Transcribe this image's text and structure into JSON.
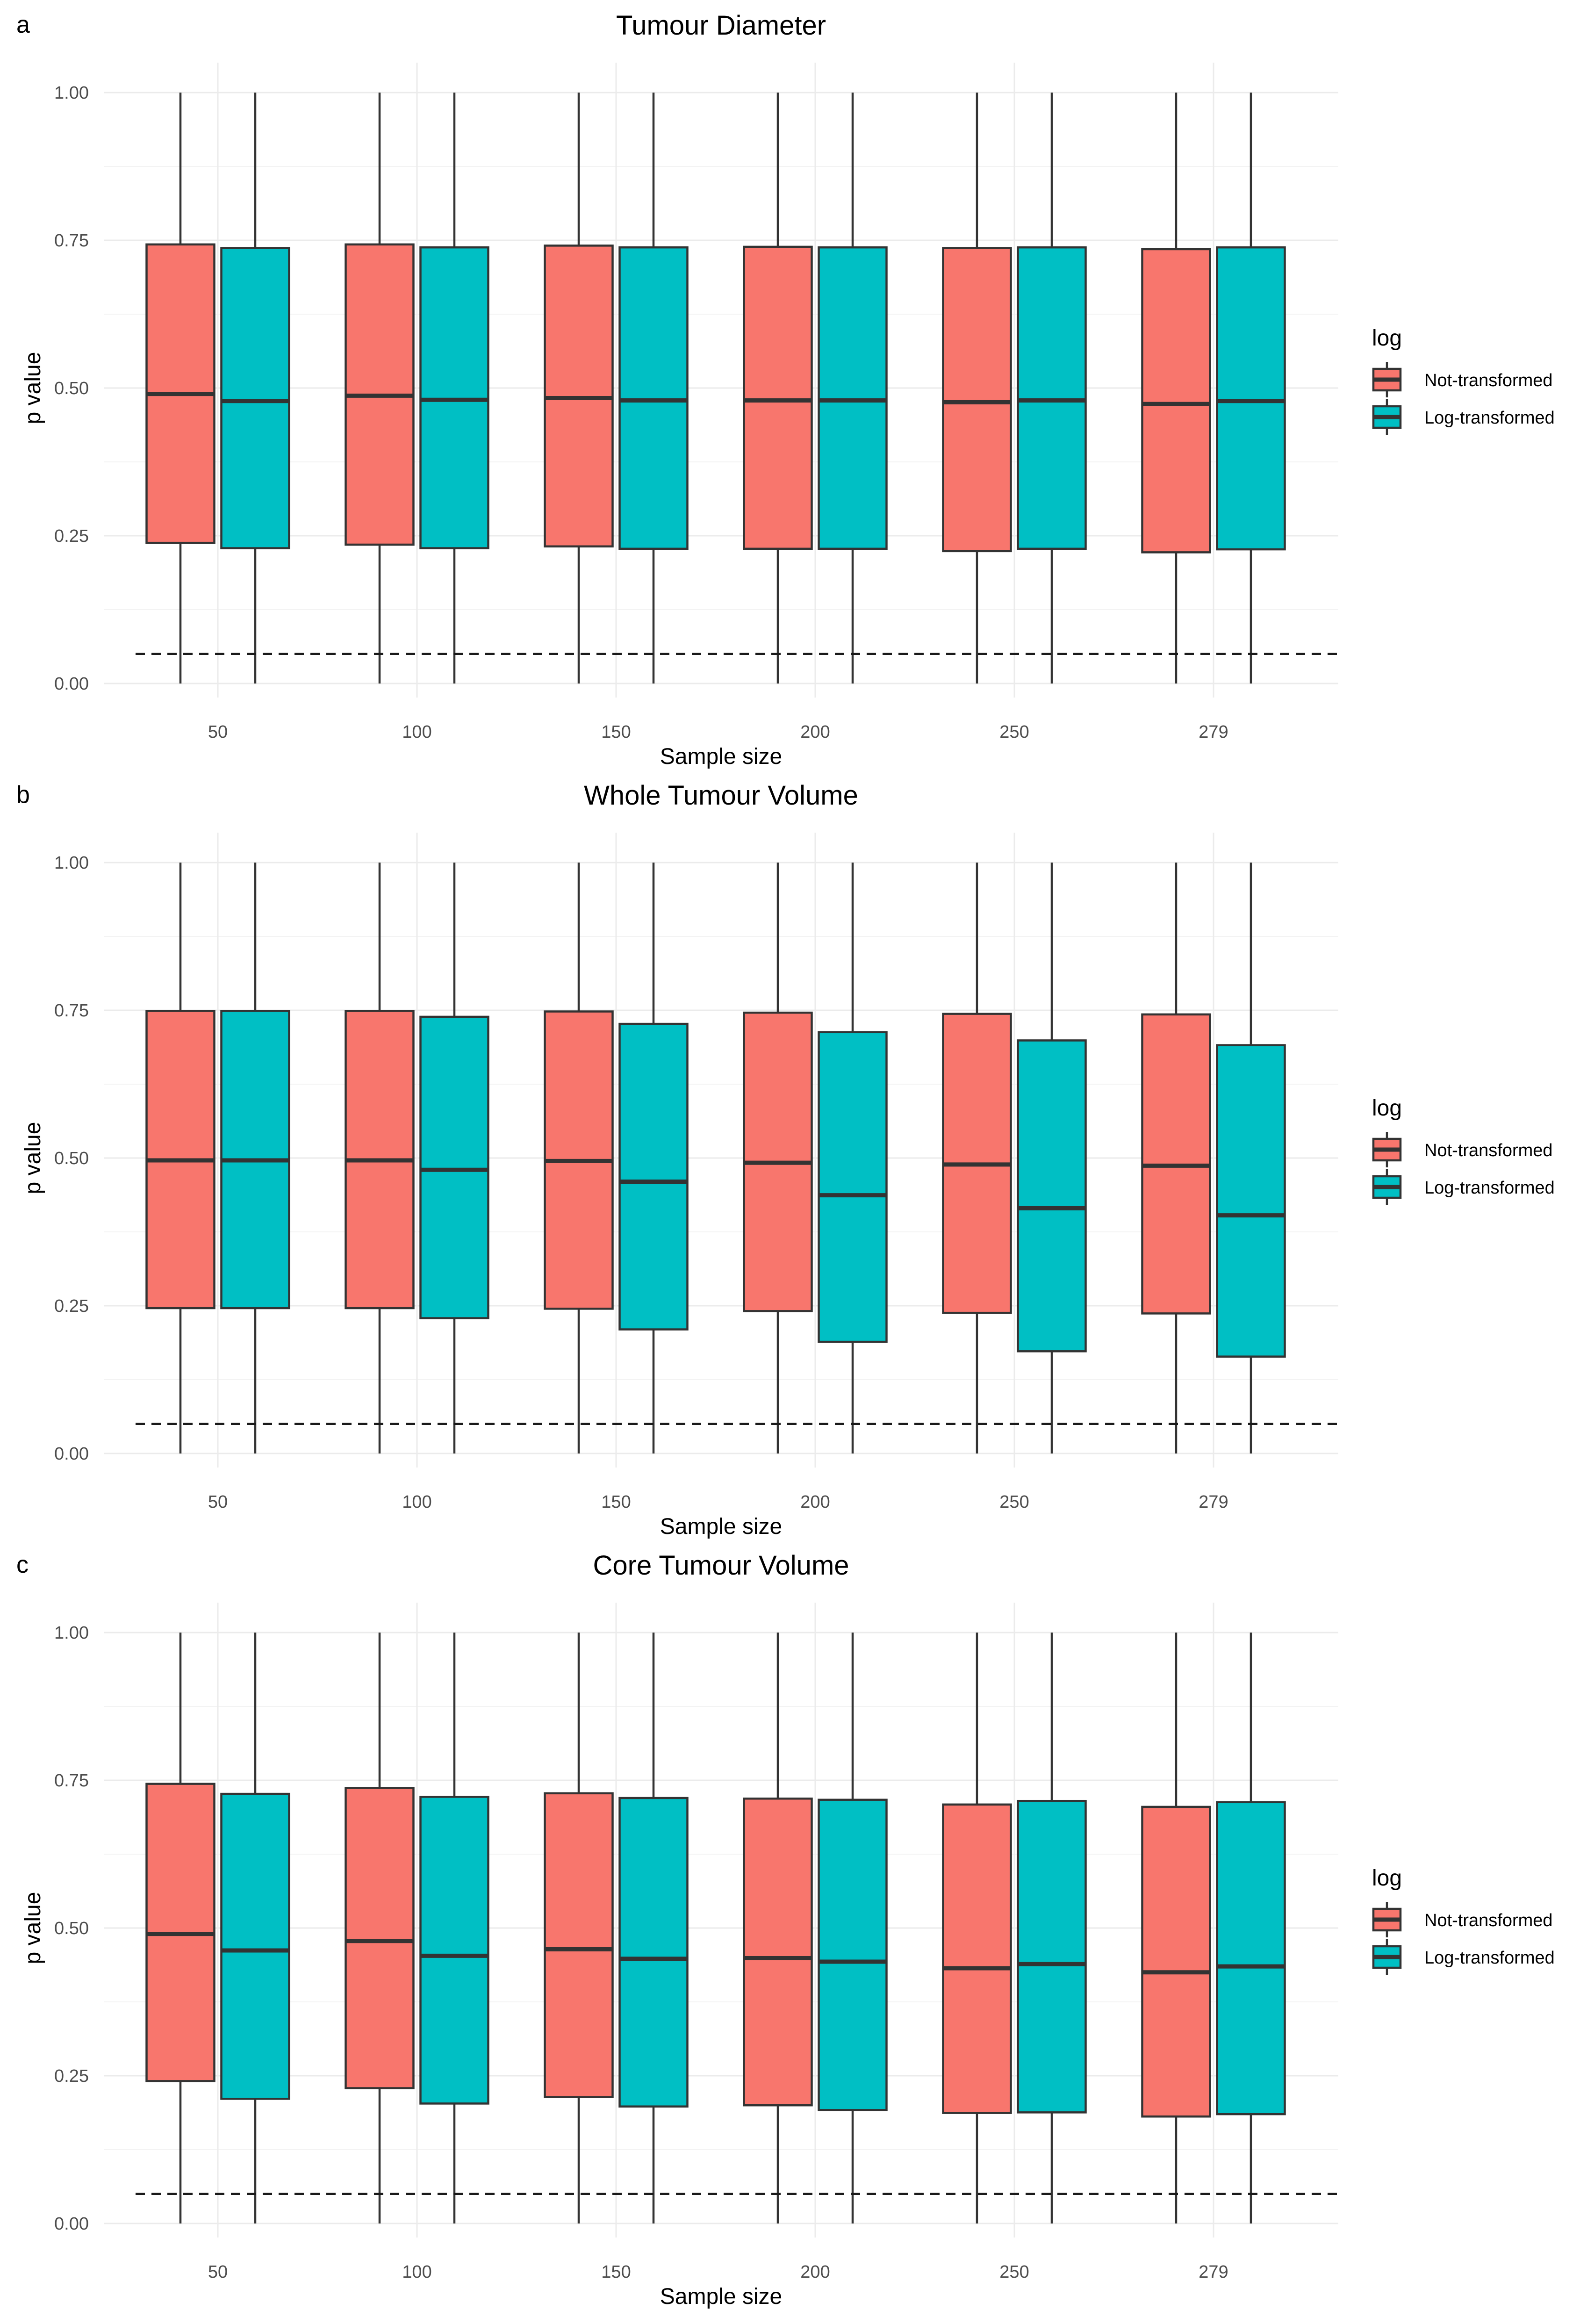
{
  "chart_data": [
    {
      "type": "box",
      "panel": "a",
      "title": "Tumour Diameter",
      "xlabel": "Sample size",
      "ylabel": "p value",
      "categories": [
        "50",
        "100",
        "150",
        "200",
        "250",
        "279"
      ],
      "ylim": [
        0,
        1
      ],
      "yticks": [
        "0.00",
        "0.25",
        "0.50",
        "0.75",
        "1.00"
      ],
      "reference_line": 0.05,
      "legend": {
        "title": "log",
        "entries": [
          "Not-transformed",
          "Log-transformed"
        ],
        "position": "right"
      },
      "series": [
        {
          "name": "Not-transformed",
          "color": "#F8766D",
          "boxes": [
            {
              "min": 0,
              "q1": 0.238,
              "median": 0.49,
              "q3": 0.743,
              "max": 1.0
            },
            {
              "min": 0,
              "q1": 0.235,
              "median": 0.487,
              "q3": 0.743,
              "max": 1.0
            },
            {
              "min": 0,
              "q1": 0.232,
              "median": 0.483,
              "q3": 0.741,
              "max": 1.0
            },
            {
              "min": 0,
              "q1": 0.228,
              "median": 0.479,
              "q3": 0.739,
              "max": 1.0
            },
            {
              "min": 0,
              "q1": 0.224,
              "median": 0.476,
              "q3": 0.737,
              "max": 1.0
            },
            {
              "min": 0,
              "q1": 0.222,
              "median": 0.473,
              "q3": 0.735,
              "max": 1.0
            }
          ]
        },
        {
          "name": "Log-transformed",
          "color": "#00BFC4",
          "boxes": [
            {
              "min": 0,
              "q1": 0.229,
              "median": 0.478,
              "q3": 0.737,
              "max": 1.0
            },
            {
              "min": 0,
              "q1": 0.229,
              "median": 0.48,
              "q3": 0.738,
              "max": 1.0
            },
            {
              "min": 0,
              "q1": 0.228,
              "median": 0.479,
              "q3": 0.738,
              "max": 1.0
            },
            {
              "min": 0,
              "q1": 0.228,
              "median": 0.479,
              "q3": 0.738,
              "max": 1.0
            },
            {
              "min": 0,
              "q1": 0.228,
              "median": 0.479,
              "q3": 0.738,
              "max": 1.0
            },
            {
              "min": 0,
              "q1": 0.227,
              "median": 0.478,
              "q3": 0.738,
              "max": 1.0
            }
          ]
        }
      ]
    },
    {
      "type": "box",
      "panel": "b",
      "title": "Whole Tumour Volume",
      "xlabel": "Sample size",
      "ylabel": "p value",
      "categories": [
        "50",
        "100",
        "150",
        "200",
        "250",
        "279"
      ],
      "ylim": [
        0,
        1
      ],
      "yticks": [
        "0.00",
        "0.25",
        "0.50",
        "0.75",
        "1.00"
      ],
      "reference_line": 0.05,
      "legend": {
        "title": "log",
        "entries": [
          "Not-transformed",
          "Log-transformed"
        ],
        "position": "right"
      },
      "series": [
        {
          "name": "Not-transformed",
          "color": "#F8766D",
          "boxes": [
            {
              "min": 0,
              "q1": 0.246,
              "median": 0.496,
              "q3": 0.749,
              "max": 1.0
            },
            {
              "min": 0,
              "q1": 0.246,
              "median": 0.496,
              "q3": 0.749,
              "max": 1.0
            },
            {
              "min": 0,
              "q1": 0.245,
              "median": 0.495,
              "q3": 0.748,
              "max": 1.0
            },
            {
              "min": 0,
              "q1": 0.241,
              "median": 0.492,
              "q3": 0.746,
              "max": 1.0
            },
            {
              "min": 0,
              "q1": 0.238,
              "median": 0.489,
              "q3": 0.744,
              "max": 1.0
            },
            {
              "min": 0,
              "q1": 0.237,
              "median": 0.487,
              "q3": 0.743,
              "max": 1.0
            }
          ]
        },
        {
          "name": "Log-transformed",
          "color": "#00BFC4",
          "boxes": [
            {
              "min": 0,
              "q1": 0.246,
              "median": 0.496,
              "q3": 0.749,
              "max": 1.0
            },
            {
              "min": 0,
              "q1": 0.229,
              "median": 0.48,
              "q3": 0.739,
              "max": 1.0
            },
            {
              "min": 0,
              "q1": 0.21,
              "median": 0.46,
              "q3": 0.727,
              "max": 1.0
            },
            {
              "min": 0,
              "q1": 0.189,
              "median": 0.437,
              "q3": 0.713,
              "max": 1.0
            },
            {
              "min": 0,
              "q1": 0.173,
              "median": 0.415,
              "q3": 0.699,
              "max": 1.0
            },
            {
              "min": 0,
              "q1": 0.164,
              "median": 0.403,
              "q3": 0.691,
              "max": 1.0
            }
          ]
        }
      ]
    },
    {
      "type": "box",
      "panel": "c",
      "title": "Core Tumour Volume",
      "xlabel": "Sample size",
      "ylabel": "p value",
      "categories": [
        "50",
        "100",
        "150",
        "200",
        "250",
        "279"
      ],
      "ylim": [
        0,
        1
      ],
      "yticks": [
        "0.00",
        "0.25",
        "0.50",
        "0.75",
        "1.00"
      ],
      "reference_line": 0.05,
      "legend": {
        "title": "log",
        "entries": [
          "Not-transformed",
          "Log-transformed"
        ],
        "position": "right"
      },
      "series": [
        {
          "name": "Not-transformed",
          "color": "#F8766D",
          "boxes": [
            {
              "min": 0,
              "q1": 0.241,
              "median": 0.49,
              "q3": 0.744,
              "max": 1.0
            },
            {
              "min": 0,
              "q1": 0.229,
              "median": 0.478,
              "q3": 0.737,
              "max": 1.0
            },
            {
              "min": 0,
              "q1": 0.214,
              "median": 0.464,
              "q3": 0.728,
              "max": 1.0
            },
            {
              "min": 0,
              "q1": 0.2,
              "median": 0.449,
              "q3": 0.719,
              "max": 1.0
            },
            {
              "min": 0,
              "q1": 0.187,
              "median": 0.432,
              "q3": 0.709,
              "max": 1.0
            },
            {
              "min": 0,
              "q1": 0.181,
              "median": 0.425,
              "q3": 0.705,
              "max": 1.0
            }
          ]
        },
        {
          "name": "Log-transformed",
          "color": "#00BFC4",
          "boxes": [
            {
              "min": 0,
              "q1": 0.211,
              "median": 0.462,
              "q3": 0.727,
              "max": 1.0
            },
            {
              "min": 0,
              "q1": 0.203,
              "median": 0.453,
              "q3": 0.722,
              "max": 1.0
            },
            {
              "min": 0,
              "q1": 0.198,
              "median": 0.448,
              "q3": 0.72,
              "max": 1.0
            },
            {
              "min": 0,
              "q1": 0.192,
              "median": 0.443,
              "q3": 0.717,
              "max": 1.0
            },
            {
              "min": 0,
              "q1": 0.188,
              "median": 0.439,
              "q3": 0.715,
              "max": 1.0
            },
            {
              "min": 0,
              "q1": 0.185,
              "median": 0.435,
              "q3": 0.713,
              "max": 1.0
            }
          ]
        }
      ]
    }
  ]
}
